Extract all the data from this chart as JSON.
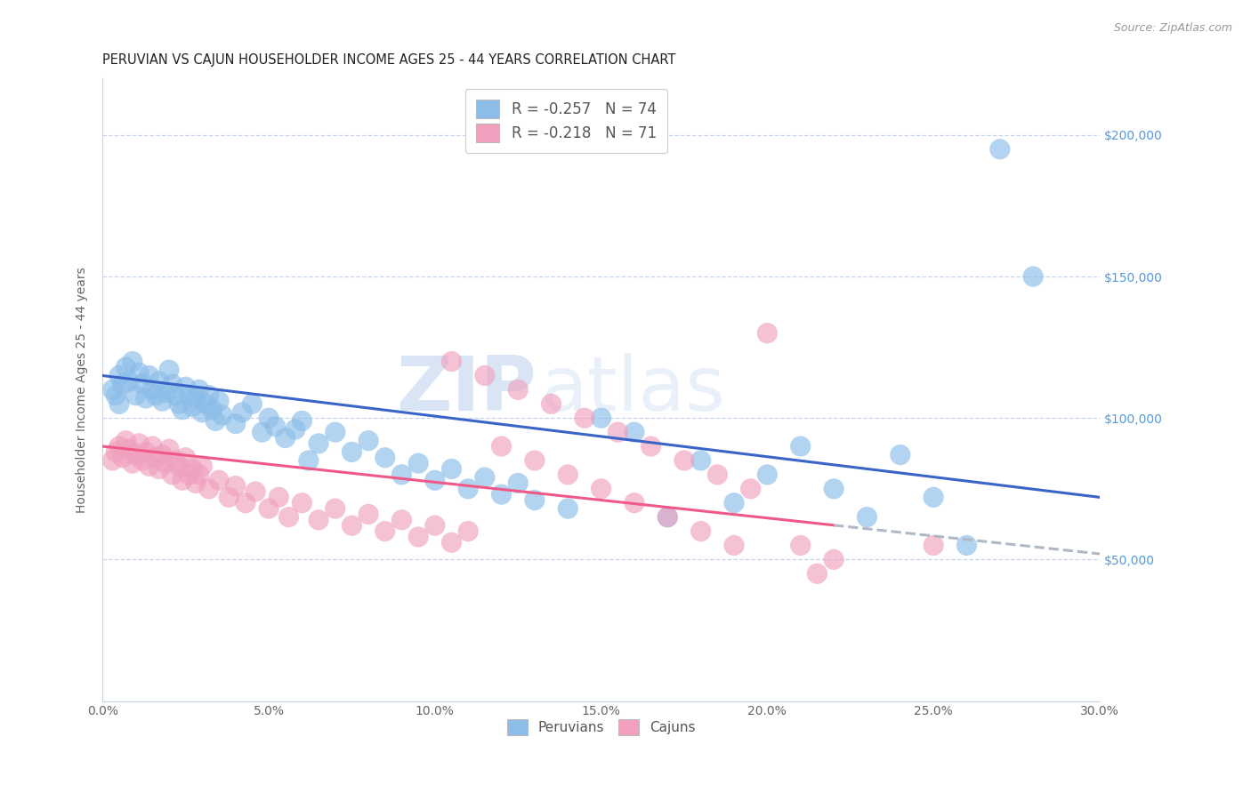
{
  "title": "PERUVIAN VS CAJUN HOUSEHOLDER INCOME AGES 25 - 44 YEARS CORRELATION CHART",
  "source": "Source: ZipAtlas.com",
  "ylabel": "Householder Income Ages 25 - 44 years",
  "xlabel_vals": [
    0.0,
    5.0,
    10.0,
    15.0,
    20.0,
    25.0,
    30.0
  ],
  "xlim": [
    0.0,
    30.0
  ],
  "ylim": [
    0,
    220000
  ],
  "yticks": [
    0,
    50000,
    100000,
    150000,
    200000
  ],
  "ytick_labels_right": [
    "",
    "$50,000",
    "$100,000",
    "$150,000",
    "$200,000"
  ],
  "peruvian_color": "#8bbde8",
  "cajun_color": "#f0a0be",
  "peruvian_line_color": "#3a65c8",
  "cajun_line_color": "#f05888",
  "cajun_ext_line_color": "#b0b8c8",
  "legend_peruvian_label": "R = -0.257   N = 74",
  "legend_cajun_label": "R = -0.218   N = 71",
  "R_peruvian": -0.257,
  "N_peruvian": 74,
  "R_cajun": -0.218,
  "N_cajun": 71,
  "peruvian_line_x0": 0.0,
  "peruvian_line_y0": 115000,
  "peruvian_line_x1": 30.0,
  "peruvian_line_y1": 72000,
  "cajun_line_x0": 0.0,
  "cajun_line_y0": 90000,
  "cajun_line_x1": 30.0,
  "cajun_line_y1": 52000,
  "cajun_solid_end": 22.0,
  "watermark_zip": "ZIP",
  "watermark_atlas": "atlas",
  "title_fontsize": 10.5,
  "axis_label_color": "#666666",
  "right_tick_color": "#5599dd",
  "grid_color": "#c8d4e8",
  "background_color": "#ffffff",
  "peruvian_x": [
    0.3,
    0.4,
    0.5,
    0.5,
    0.6,
    0.7,
    0.8,
    0.9,
    1.0,
    1.1,
    1.2,
    1.3,
    1.4,
    1.5,
    1.6,
    1.7,
    1.8,
    1.9,
    2.0,
    2.1,
    2.2,
    2.3,
    2.4,
    2.5,
    2.6,
    2.7,
    2.8,
    2.9,
    3.0,
    3.1,
    3.2,
    3.3,
    3.4,
    3.5,
    3.6,
    4.0,
    4.2,
    4.5,
    4.8,
    5.0,
    5.2,
    5.5,
    5.8,
    6.0,
    6.2,
    6.5,
    7.0,
    7.5,
    8.0,
    8.5,
    9.0,
    9.5,
    10.0,
    10.5,
    11.0,
    11.5,
    12.0,
    12.5,
    13.0,
    14.0,
    15.0,
    16.0,
    17.0,
    18.0,
    19.0,
    20.0,
    21.0,
    22.0,
    23.0,
    24.0,
    25.0,
    26.0,
    27.0,
    28.0
  ],
  "peruvian_y": [
    110000,
    108000,
    115000,
    105000,
    112000,
    118000,
    113000,
    120000,
    108000,
    116000,
    112000,
    107000,
    115000,
    110000,
    108000,
    113000,
    106000,
    109000,
    117000,
    112000,
    108000,
    105000,
    103000,
    111000,
    108000,
    104000,
    107000,
    110000,
    102000,
    105000,
    108000,
    103000,
    99000,
    106000,
    101000,
    98000,
    102000,
    105000,
    95000,
    100000,
    97000,
    93000,
    96000,
    99000,
    85000,
    91000,
    95000,
    88000,
    92000,
    86000,
    80000,
    84000,
    78000,
    82000,
    75000,
    79000,
    73000,
    77000,
    71000,
    68000,
    100000,
    95000,
    65000,
    85000,
    70000,
    80000,
    90000,
    75000,
    65000,
    87000,
    72000,
    55000,
    195000,
    150000
  ],
  "cajun_x": [
    0.3,
    0.4,
    0.5,
    0.6,
    0.7,
    0.8,
    0.9,
    1.0,
    1.1,
    1.2,
    1.3,
    1.4,
    1.5,
    1.6,
    1.7,
    1.8,
    1.9,
    2.0,
    2.1,
    2.2,
    2.3,
    2.4,
    2.5,
    2.6,
    2.7,
    2.8,
    2.9,
    3.0,
    3.2,
    3.5,
    3.8,
    4.0,
    4.3,
    4.6,
    5.0,
    5.3,
    5.6,
    6.0,
    6.5,
    7.0,
    7.5,
    8.0,
    8.5,
    9.0,
    9.5,
    10.0,
    10.5,
    11.0,
    12.0,
    13.0,
    14.0,
    15.0,
    16.0,
    17.0,
    18.0,
    19.0,
    20.0,
    21.0,
    22.0,
    10.5,
    11.5,
    12.5,
    13.5,
    14.5,
    15.5,
    16.5,
    17.5,
    18.5,
    19.5,
    21.5,
    25.0
  ],
  "cajun_y": [
    85000,
    88000,
    90000,
    86000,
    92000,
    89000,
    84000,
    87000,
    91000,
    85000,
    88000,
    83000,
    90000,
    86000,
    82000,
    87000,
    84000,
    89000,
    80000,
    85000,
    83000,
    78000,
    86000,
    80000,
    82000,
    77000,
    80000,
    83000,
    75000,
    78000,
    72000,
    76000,
    70000,
    74000,
    68000,
    72000,
    65000,
    70000,
    64000,
    68000,
    62000,
    66000,
    60000,
    64000,
    58000,
    62000,
    56000,
    60000,
    90000,
    85000,
    80000,
    75000,
    70000,
    65000,
    60000,
    55000,
    130000,
    55000,
    50000,
    120000,
    115000,
    110000,
    105000,
    100000,
    95000,
    90000,
    85000,
    80000,
    75000,
    45000,
    55000
  ]
}
